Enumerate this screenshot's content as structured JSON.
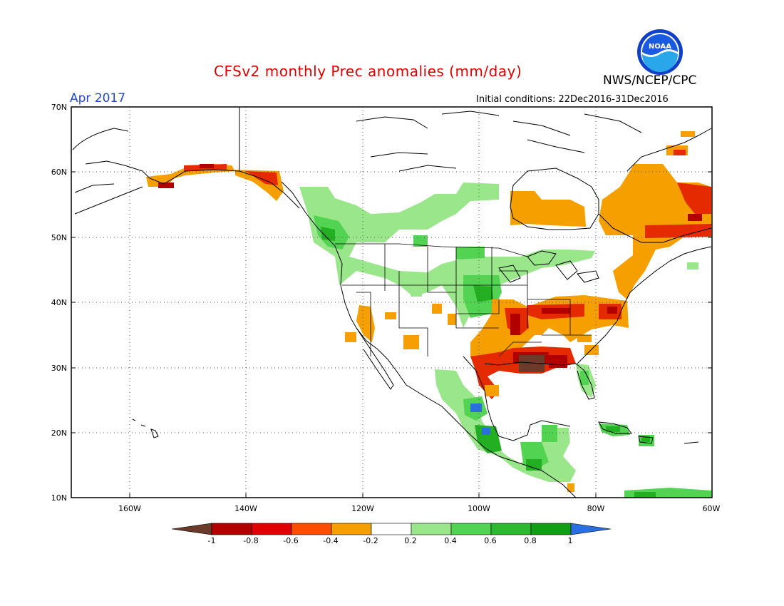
{
  "header": {
    "title": "CFSv2 monthly Prec anomalies (mm/day)",
    "period": "Apr 2017",
    "initial_conditions": "Initial conditions: 22Dec2016-31Dec2016",
    "agency": "NWS/NCEP/CPC",
    "logo_text": "NOAA"
  },
  "map": {
    "lat_range": [
      10,
      70
    ],
    "lon_range": [
      -170,
      -60
    ],
    "lat_ticks": [
      "70N",
      "60N",
      "50N",
      "40N",
      "30N",
      "20N",
      "10N"
    ],
    "lon_ticks": [
      "160W",
      "140W",
      "120W",
      "100W",
      "80W",
      "60W"
    ],
    "grid": "dotted",
    "anomaly_regions": [
      {
        "name": "Alaska south coast",
        "category": "-0.4 to -0.2",
        "color": "#f5a000"
      },
      {
        "name": "Alaska panhandle",
        "category": "-0.6 to -0.4",
        "color": "#e62a00"
      },
      {
        "name": "Pacific Northwest / Canadian Prairies",
        "category": "0.2 to 0.4",
        "color": "#9ae68a"
      },
      {
        "name": "Upper Midwest",
        "category": "0.4 to 0.6",
        "color": "#52d452"
      },
      {
        "name": "Hudson Bay / Quebec",
        "category": "-0.4 to -0.2",
        "color": "#f5a000"
      },
      {
        "name": "Ohio Valley / Mid-Atlantic",
        "category": "-0.6 to -0.4",
        "color": "#e62a00"
      },
      {
        "name": "Lower Mississippi / Gulf Coast",
        "category": "< -1",
        "color": "#6b3a2a"
      },
      {
        "name": "Southwest US",
        "category": "-0.4 to -0.2",
        "color": "#f5a000"
      },
      {
        "name": "Mexico / Central America",
        "category": "0.4 to 0.8",
        "color": "#22b022"
      },
      {
        "name": "Caribbean",
        "category": "0.4 to 0.6",
        "color": "#52d452"
      }
    ]
  },
  "colorbar": {
    "labels": [
      "-1",
      "-0.8",
      "-0.6",
      "-0.4",
      "-0.2",
      "0.2",
      "0.4",
      "0.6",
      "0.8",
      "1"
    ],
    "colors": [
      "#6b3a2a",
      "#b20000",
      "#e00000",
      "#ff4d00",
      "#f5a000",
      "#ffffff",
      "#9ae68a",
      "#52d452",
      "#2db82d",
      "#129e12",
      "#2a6fe0"
    ]
  }
}
